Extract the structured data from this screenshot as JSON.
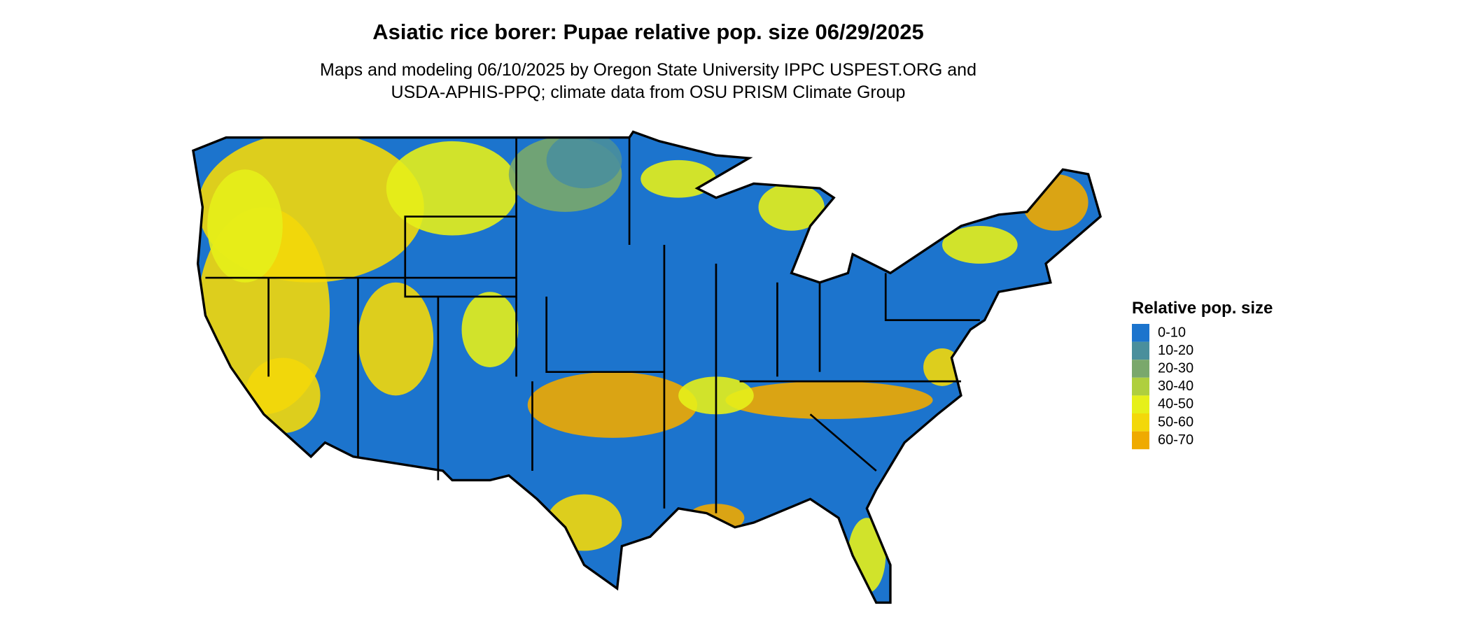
{
  "header": {
    "title": "Asiatic rice borer: Pupae relative pop. size 06/29/2025",
    "subtitle_lines": [
      "Maps and modeling 06/10/2025 by Oregon State University IPPC USPEST.ORG and",
      "USDA-APHIS-PPQ; climate data from OSU PRISM Climate Group"
    ]
  },
  "legend": {
    "title": "Relative pop. size",
    "items": [
      {
        "label": "0-10",
        "color": "#1c74cd"
      },
      {
        "label": "10-20",
        "color": "#4a8f9c"
      },
      {
        "label": "20-30",
        "color": "#7aa86c"
      },
      {
        "label": "30-40",
        "color": "#afcf3e"
      },
      {
        "label": "40-50",
        "color": "#e6f01a"
      },
      {
        "label": "50-60",
        "color": "#f3d80a"
      },
      {
        "label": "60-70",
        "color": "#efaa00"
      }
    ]
  }
}
